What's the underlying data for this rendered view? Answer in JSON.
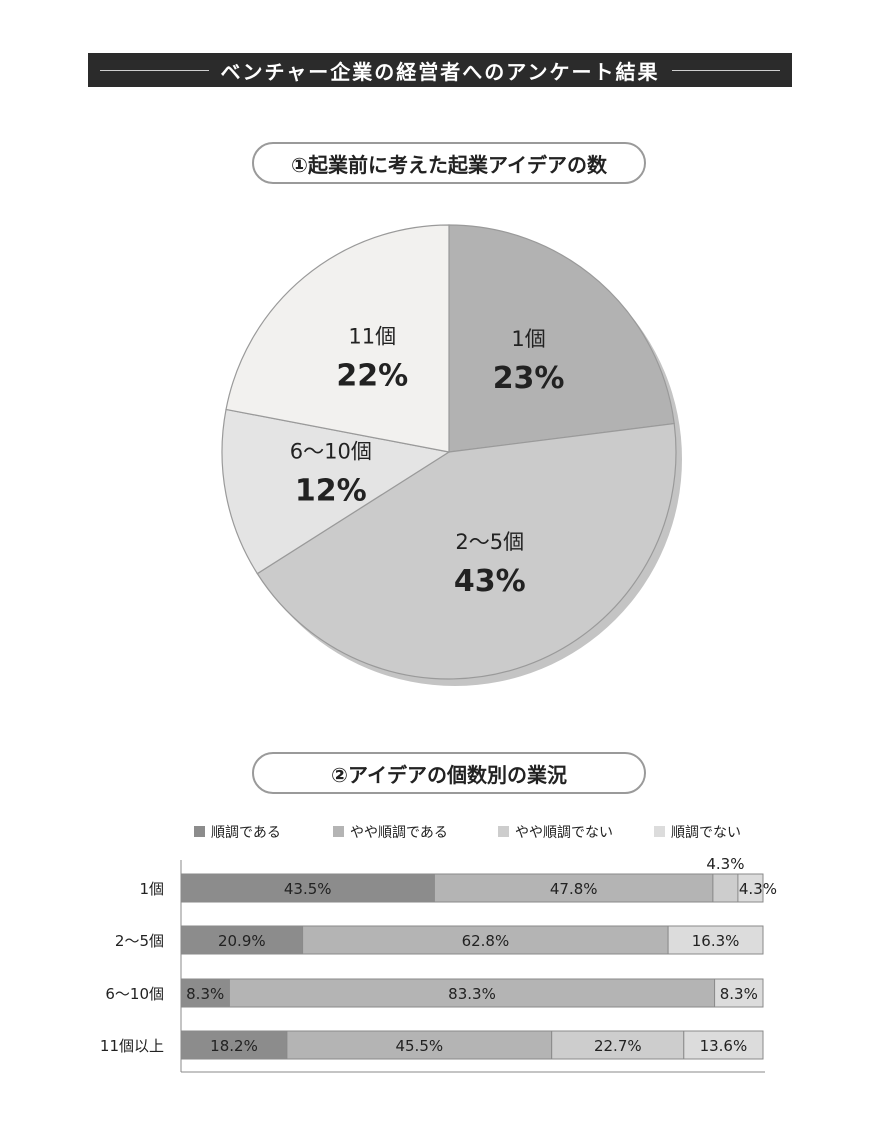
{
  "header": {
    "title": "ベンチャー企業の経営者へのアンケート結果"
  },
  "section1": {
    "title": "①起業前に考えた起業アイデアの数"
  },
  "section2": {
    "title": "②アイデアの個数別の業況"
  },
  "chart_data": [
    {
      "type": "pie",
      "title": "①起業前に考えた起業アイデアの数",
      "slices": [
        {
          "label": "1個",
          "value": 23,
          "value_label": "23%",
          "color": "#b2b2b2"
        },
        {
          "label": "2～5個",
          "value": 43,
          "value_label": "43%",
          "color": "#cbcbcb"
        },
        {
          "label": "6～10個",
          "value": 12,
          "value_label": "12%",
          "color": "#e4e4e4"
        },
        {
          "label": "11個",
          "value": 22,
          "value_label": "22%",
          "color": "#f2f1ef"
        }
      ]
    },
    {
      "type": "bar",
      "orientation": "horizontal",
      "stacked": true,
      "title": "②アイデアの個数別の業況",
      "categories": [
        "1個",
        "2～5個",
        "6～10個",
        "11個以上"
      ],
      "series": [
        {
          "name": "順調である",
          "color": "#8c8c8c",
          "values": [
            43.5,
            20.9,
            8.3,
            18.2
          ],
          "labels": [
            "43.5%",
            "20.9%",
            "8.3%",
            "18.2%"
          ]
        },
        {
          "name": "やや順調である",
          "color": "#b4b4b4",
          "values": [
            47.8,
            62.8,
            83.3,
            45.5
          ],
          "labels": [
            "47.8%",
            "62.8%",
            "83.3%",
            "45.5%"
          ]
        },
        {
          "name": "やや順調でない",
          "color": "#cdcdcd",
          "values": [
            4.3,
            0,
            0,
            22.7
          ],
          "labels": [
            "4.3%",
            "",
            "",
            "22.7%"
          ]
        },
        {
          "name": "順調でない",
          "color": "#dcdcdc",
          "values": [
            4.3,
            16.3,
            8.3,
            13.6
          ],
          "labels": [
            "4.3%",
            "16.3%",
            "8.3%",
            "13.6%"
          ]
        }
      ],
      "legend_position": "top"
    }
  ]
}
